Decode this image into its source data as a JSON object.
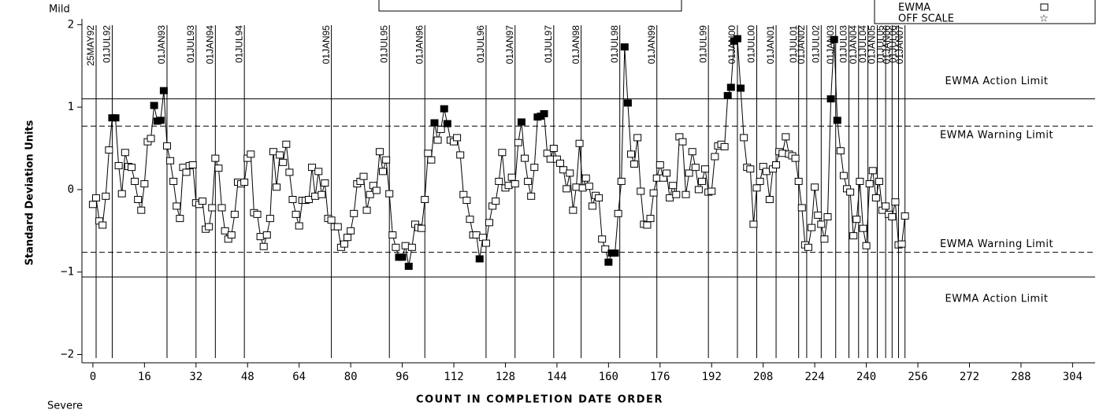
{
  "chart_data": {
    "type": "line",
    "x_label": "COUNT IN COMPLETION DATE ORDER",
    "y_label": "Standard Deviation Units",
    "top_label": "Mild",
    "bottom_label": "Severe",
    "xlim": [
      -3.4,
      311
    ],
    "ylim": [
      -2.1,
      2.07
    ],
    "xticks": [
      0,
      16,
      32,
      48,
      64,
      80,
      96,
      112,
      128,
      144,
      160,
      176,
      192,
      208,
      224,
      240,
      256,
      272,
      288,
      304
    ],
    "yticks": [
      {
        "value": -2,
        "label": "−2"
      },
      {
        "value": -1,
        "label": "−1"
      },
      0,
      1,
      2
    ],
    "legend_extra": "OFF SCALE",
    "series": [
      {
        "name": "EWMA",
        "color": "#000000",
        "values": [
          -0.18,
          -0.1,
          -0.38,
          -0.43,
          -0.08,
          0.48,
          0.87,
          0.87,
          0.29,
          -0.05,
          0.45,
          0.28,
          0.27,
          0.1,
          -0.12,
          -0.25,
          0.07,
          0.58,
          0.62,
          1.02,
          0.83,
          0.84,
          1.2,
          0.53,
          0.35,
          0.1,
          -0.2,
          -0.35,
          0.27,
          0.21,
          0.29,
          0.3,
          -0.16,
          -0.18,
          -0.14,
          -0.48,
          -0.45,
          -0.22,
          0.38,
          0.26,
          -0.22,
          -0.5,
          -0.6,
          -0.55,
          -0.3,
          0.09,
          0.07,
          0.09,
          0.38,
          0.43,
          -0.28,
          -0.3,
          -0.57,
          -0.69,
          -0.55,
          -0.35,
          0.46,
          0.03,
          0.42,
          0.33,
          0.55,
          0.21,
          -0.12,
          -0.3,
          -0.44,
          -0.13,
          -0.13,
          -0.12,
          0.27,
          -0.08,
          0.22,
          -0.06,
          0.08,
          -0.35,
          -0.37,
          -0.45,
          -0.45,
          -0.7,
          -0.66,
          -0.58,
          -0.5,
          -0.29,
          0.07,
          0.1,
          0.16,
          -0.25,
          -0.06,
          0.05,
          -0.01,
          0.46,
          0.22,
          0.36,
          -0.05,
          -0.55,
          -0.7,
          -0.82,
          -0.82,
          -0.68,
          -0.93,
          -0.7,
          -0.42,
          -0.46,
          -0.47,
          -0.12,
          0.44,
          0.36,
          0.81,
          0.6,
          0.73,
          0.98,
          0.8,
          0.6,
          0.58,
          0.63,
          0.42,
          -0.06,
          -0.13,
          -0.36,
          -0.55,
          -0.55,
          -0.84,
          -0.58,
          -0.65,
          -0.4,
          -0.2,
          -0.14,
          0.1,
          0.45,
          0.02,
          0.05,
          0.15,
          0.07,
          0.57,
          0.82,
          0.38,
          0.1,
          -0.08,
          0.27,
          0.88,
          0.89,
          0.92,
          0.44,
          0.37,
          0.5,
          0.37,
          0.32,
          0.24,
          0.01,
          0.2,
          -0.25,
          0.03,
          0.56,
          0.02,
          0.14,
          0.04,
          -0.2,
          -0.07,
          -0.1,
          -0.6,
          -0.72,
          -0.88,
          -0.77,
          -0.77,
          -0.29,
          0.1,
          1.73,
          1.05,
          0.43,
          0.31,
          0.63,
          -0.02,
          -0.42,
          -0.43,
          -0.35,
          -0.04,
          0.14,
          0.3,
          0.14,
          0.2,
          -0.1,
          0.05,
          -0.06,
          0.64,
          0.58,
          -0.06,
          0.2,
          0.46,
          0.27,
          0.0,
          0.1,
          0.25,
          -0.03,
          -0.02,
          0.4,
          0.53,
          0.55,
          0.52,
          1.14,
          1.24,
          1.8,
          1.83,
          1.23,
          0.63,
          0.27,
          0.25,
          -0.42,
          0.02,
          0.1,
          0.28,
          0.22,
          -0.12,
          0.25,
          0.3,
          0.46,
          0.44,
          0.64,
          0.43,
          0.41,
          0.38,
          0.1,
          -0.22,
          -0.67,
          -0.7,
          -0.46,
          0.03,
          -0.31,
          -0.42,
          -0.6,
          -0.33,
          1.1,
          1.82,
          0.84,
          0.47,
          0.17,
          0.01,
          -0.03,
          -0.56,
          -0.36,
          0.1,
          -0.47,
          -0.68,
          0.07,
          0.23,
          -0.1,
          0.1,
          -0.25,
          -0.2,
          -0.3,
          -0.33,
          -0.15,
          -0.67,
          -0.66,
          -0.32
        ]
      }
    ],
    "limits": [
      {
        "label": "EWMA Action Limit",
        "value": 1.1,
        "style": "solid"
      },
      {
        "label": "EWMA Warning Limit",
        "value": 0.77,
        "style": "dashed"
      },
      {
        "label": "EWMA Warning Limit",
        "value": -0.76,
        "style": "dashed"
      },
      {
        "label": "EWMA Action Limit",
        "value": -1.06,
        "style": "solid"
      }
    ],
    "date_lines": [
      {
        "label": "25MAY92",
        "x": 1
      },
      {
        "label": "01JUL92",
        "x": 6
      },
      {
        "label": "01JAN93",
        "x": 23
      },
      {
        "label": "01JUL93",
        "x": 32
      },
      {
        "label": "01JAN94",
        "x": 38
      },
      {
        "label": "01JUL94",
        "x": 47
      },
      {
        "label": "01JAN95",
        "x": 74
      },
      {
        "label": "01JUL95",
        "x": 92
      },
      {
        "label": "01JAN96",
        "x": 103
      },
      {
        "label": "01JUL96",
        "x": 122
      },
      {
        "label": "01JAN97",
        "x": 131
      },
      {
        "label": "01JUL97",
        "x": 143
      },
      {
        "label": "01JAN98",
        "x": 151.5
      },
      {
        "label": "01JUL98",
        "x": 163.5
      },
      {
        "label": "01JAN99",
        "x": 175
      },
      {
        "label": "01JUL99",
        "x": 191
      },
      {
        "label": "01JAN00",
        "x": 200
      },
      {
        "label": "01JUL00",
        "x": 206
      },
      {
        "label": "01JAN01",
        "x": 212
      },
      {
        "label": "01JUL01",
        "x": 219
      },
      {
        "label": "01JAN02",
        "x": 221.5
      },
      {
        "label": "01JUL02",
        "x": 226
      },
      {
        "label": "01JAN03",
        "x": 230.5
      },
      {
        "label": "01JUL03",
        "x": 234.6
      },
      {
        "label": "01JAN04",
        "x": 237.6
      },
      {
        "label": "01JUL04",
        "x": 240.5
      },
      {
        "label": "01JAN05",
        "x": 243.4
      },
      {
        "label": "01JUL05",
        "x": 246
      },
      {
        "label": "01JAN06",
        "x": 248
      },
      {
        "label": "01JUL06",
        "x": 250
      },
      {
        "label": "01JAN07",
        "x": 252
      }
    ]
  }
}
